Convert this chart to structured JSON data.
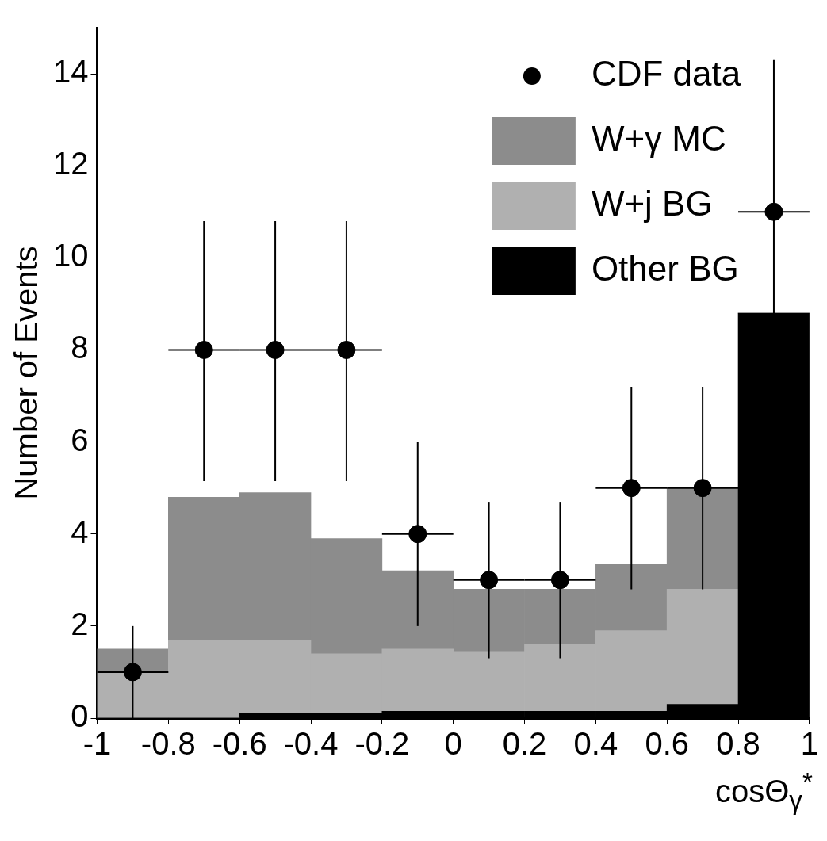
{
  "chart_data": {
    "type": "bar",
    "xlabel": "cosΘ$_{γ}$$^{*}$",
    "ylabel": "Number of Events",
    "x": [
      -0.9,
      -0.7,
      -0.5,
      -0.3,
      -0.1,
      0.1,
      0.3,
      0.5,
      0.7,
      0.9
    ],
    "stacked": true,
    "series": [
      {
        "name": "Other BG",
        "color": "#000000",
        "values": [
          0,
          0,
          0.1,
          0.1,
          0.15,
          0.15,
          0.15,
          0.15,
          0.3,
          8.8
        ]
      },
      {
        "name": "W+j BG",
        "color": "#b0b0b0",
        "values": [
          1.0,
          1.7,
          1.6,
          1.3,
          1.35,
          1.3,
          1.45,
          1.75,
          2.5,
          0
        ]
      },
      {
        "name": "W+γ MC",
        "color": "#8c8c8c",
        "values": [
          0.5,
          3.1,
          3.2,
          2.5,
          1.7,
          1.35,
          1.2,
          1.45,
          2.2,
          0
        ]
      },
      {
        "name": "CDF data",
        "type": "scatter",
        "color": "#000000",
        "marker": "circle",
        "x": [
          -0.9,
          -0.7,
          -0.5,
          -0.3,
          -0.1,
          0.1,
          0.3,
          0.5,
          0.7,
          0.9
        ],
        "values": [
          1,
          8,
          8,
          8,
          4,
          3,
          3,
          5,
          5,
          11
        ],
        "errors": [
          [
            0,
            2
          ],
          [
            5.15,
            10.8
          ],
          [
            5.15,
            10.8
          ],
          [
            5.15,
            10.8
          ],
          [
            2,
            6
          ],
          [
            1.3,
            4.7
          ],
          [
            1.3,
            4.7
          ],
          [
            2.8,
            7.2
          ],
          [
            2.8,
            7.2
          ],
          [
            8.8,
            14.3
          ]
        ],
        "xerrors": [
          0.1,
          0.1,
          0.1,
          0.1,
          0.1,
          0.1,
          0.1,
          0.1,
          0.1,
          0.1
        ]
      }
    ],
    "xlim": [
      -1,
      1
    ],
    "xticks": [
      -1,
      -0.8,
      -0.6,
      -0.4,
      -0.2,
      0,
      0.2,
      0.4,
      0.6,
      0.8,
      1
    ],
    "ylim": [
      0,
      15
    ],
    "yticks": [
      0,
      2,
      4,
      6,
      8,
      10,
      12,
      14
    ],
    "grid": false,
    "legend": "top right"
  }
}
